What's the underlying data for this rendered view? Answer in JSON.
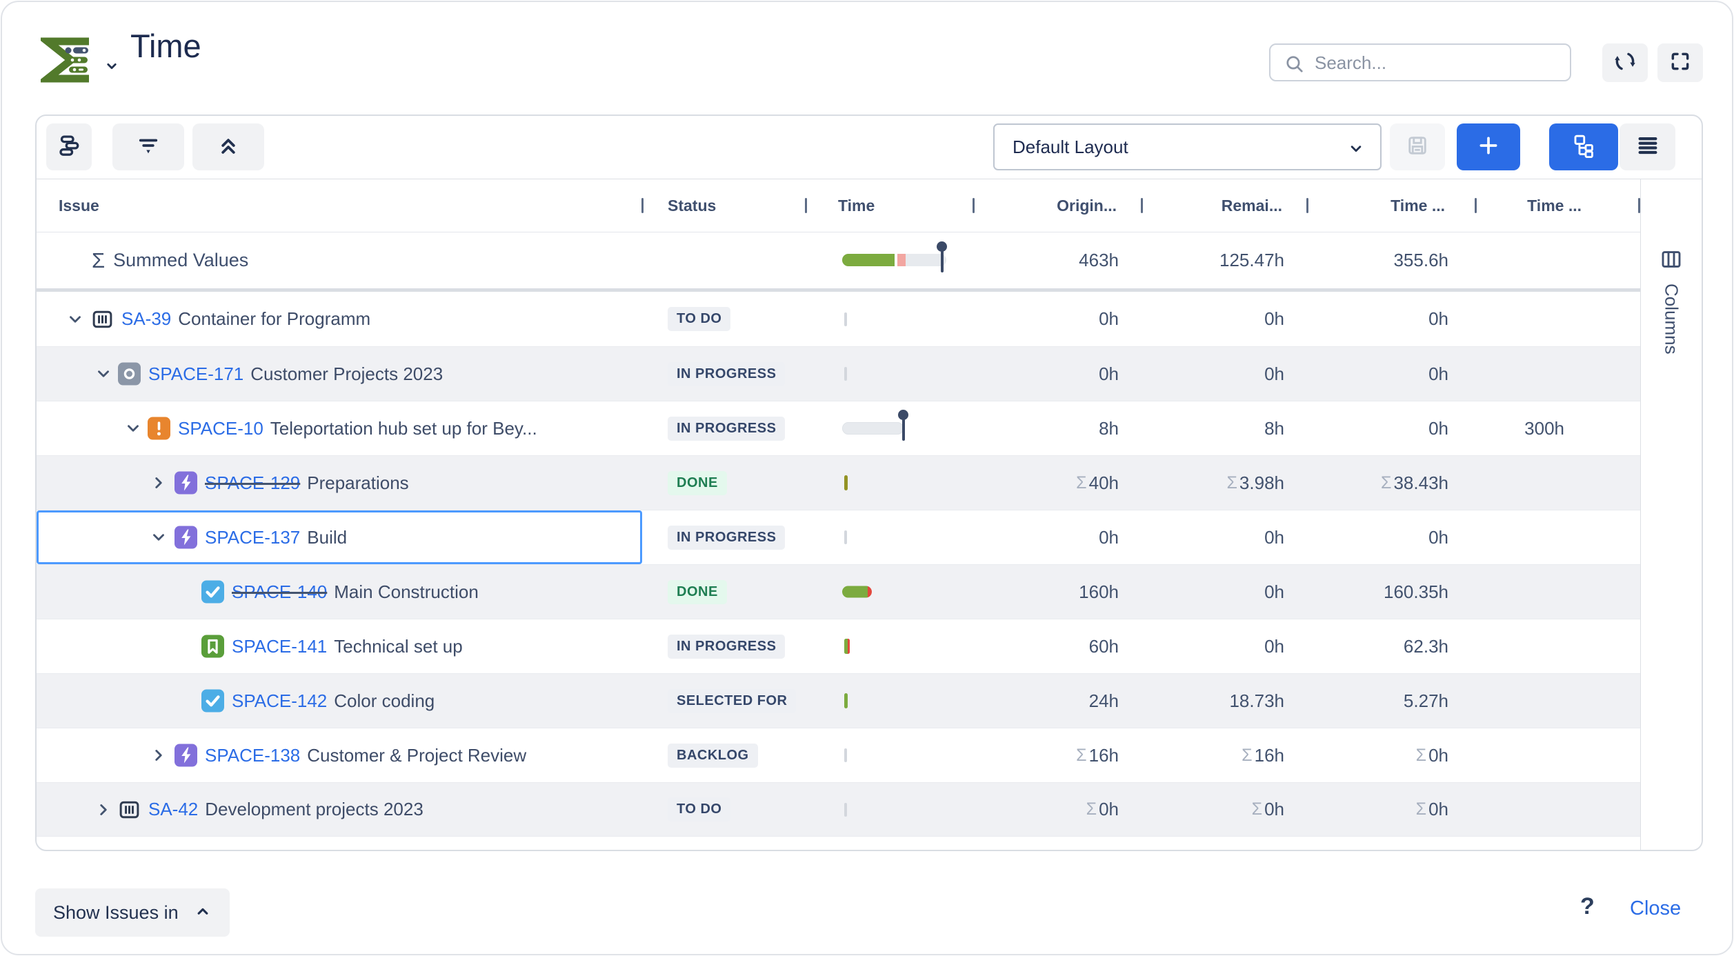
{
  "app": {
    "title": "Time"
  },
  "header": {
    "search_placeholder": "Search..."
  },
  "toolbar": {
    "layout_selector_value": "Default Layout"
  },
  "table": {
    "columns": [
      {
        "label": "Issue"
      },
      {
        "label": "Status"
      },
      {
        "label": "Time"
      },
      {
        "label": "Origin..."
      },
      {
        "label": "Remai..."
      },
      {
        "label": "Time ..."
      },
      {
        "label": "Time ..."
      }
    ],
    "summary_row": {
      "sigma": "Σ",
      "label": "Summed Values",
      "original": "463h",
      "remaining": "125.47h",
      "time_spent": "355.6h"
    },
    "rows": [
      {
        "key": "SA-39",
        "summary": "Container for Programm",
        "status": "TO DO",
        "status_style": "default",
        "icon": "container",
        "level": 1,
        "chevron": "down",
        "strikethrough": false,
        "selected": false,
        "zebra": "white",
        "time_indicator": "gray-tick",
        "original": {
          "sum": false,
          "text": "0h"
        },
        "remaining": {
          "sum": false,
          "text": "0h"
        },
        "time_spent": {
          "sum": false,
          "text": "0h"
        },
        "time4": null
      },
      {
        "key": "SPACE-171",
        "summary": "Customer Projects 2023",
        "status": "IN PROGRESS",
        "status_style": "default",
        "icon": "subprogram",
        "level": 2,
        "chevron": "down",
        "strikethrough": false,
        "selected": false,
        "zebra": "gray",
        "time_indicator": "gray-tick",
        "original": {
          "sum": false,
          "text": "0h"
        },
        "remaining": {
          "sum": false,
          "text": "0h"
        },
        "time_spent": {
          "sum": false,
          "text": "0h"
        },
        "time4": null
      },
      {
        "key": "SPACE-10",
        "summary": "Teleportation hub set up for Bey...",
        "status": "IN PROGRESS",
        "status_style": "default",
        "icon": "alert",
        "level": 3,
        "chevron": "down",
        "strikethrough": false,
        "selected": false,
        "zebra": "white",
        "time_indicator": "progress-pin",
        "original": {
          "sum": false,
          "text": "8h"
        },
        "remaining": {
          "sum": false,
          "text": "8h"
        },
        "time_spent": {
          "sum": false,
          "text": "0h"
        },
        "time4": {
          "sum": false,
          "text": "300h"
        }
      },
      {
        "key": "SPACE-129",
        "summary": "Preparations",
        "status": "DONE",
        "status_style": "done",
        "icon": "epic",
        "level": 4,
        "chevron": "right",
        "strikethrough": true,
        "selected": false,
        "zebra": "gray",
        "time_indicator": "olive-tick",
        "original": {
          "sum": true,
          "text": "40h"
        },
        "remaining": {
          "sum": true,
          "text": "3.98h"
        },
        "time_spent": {
          "sum": true,
          "text": "38.43h"
        },
        "time4": null
      },
      {
        "key": "SPACE-137",
        "summary": "Build",
        "status": "IN PROGRESS",
        "status_style": "default",
        "icon": "epic",
        "level": 4,
        "chevron": "down",
        "strikethrough": false,
        "selected": true,
        "zebra": "white",
        "time_indicator": "gray-tick",
        "original": {
          "sum": false,
          "text": "0h"
        },
        "remaining": {
          "sum": false,
          "text": "0h"
        },
        "time_spent": {
          "sum": false,
          "text": "0h"
        },
        "time4": null
      },
      {
        "key": "SPACE-140",
        "summary": "Main Construction",
        "status": "DONE",
        "status_style": "done",
        "icon": "task",
        "level": 5,
        "chevron": "none",
        "strikethrough": true,
        "selected": false,
        "zebra": "gray",
        "time_indicator": "green-pill",
        "original": {
          "sum": false,
          "text": "160h"
        },
        "remaining": {
          "sum": false,
          "text": "0h"
        },
        "time_spent": {
          "sum": false,
          "text": "160.35h"
        },
        "time4": null
      },
      {
        "key": "SPACE-141",
        "summary": "Technical set up",
        "status": "IN PROGRESS",
        "status_style": "default",
        "icon": "story",
        "level": 5,
        "chevron": "none",
        "strikethrough": false,
        "selected": false,
        "zebra": "white",
        "time_indicator": "green-red-tick",
        "original": {
          "sum": false,
          "text": "60h"
        },
        "remaining": {
          "sum": false,
          "text": "0h"
        },
        "time_spent": {
          "sum": false,
          "text": "62.3h"
        },
        "time4": null
      },
      {
        "key": "SPACE-142",
        "summary": "Color coding",
        "status": "SELECTED FOR",
        "status_style": "default",
        "icon": "task",
        "level": 5,
        "chevron": "none",
        "strikethrough": false,
        "selected": false,
        "zebra": "gray",
        "time_indicator": "green-tick",
        "original": {
          "sum": false,
          "text": "24h"
        },
        "remaining": {
          "sum": false,
          "text": "18.73h"
        },
        "time_spent": {
          "sum": false,
          "text": "5.27h"
        },
        "time4": null
      },
      {
        "key": "SPACE-138",
        "summary": "Customer & Project Review",
        "status": "BACKLOG",
        "status_style": "default",
        "icon": "epic",
        "level": 4,
        "chevron": "right",
        "strikethrough": false,
        "selected": false,
        "zebra": "white",
        "time_indicator": "gray-tick",
        "original": {
          "sum": true,
          "text": "16h"
        },
        "remaining": {
          "sum": true,
          "text": "16h"
        },
        "time_spent": {
          "sum": true,
          "text": "0h"
        },
        "time4": null
      },
      {
        "key": "SA-42",
        "summary": "Development projects 2023",
        "status": "TO DO",
        "status_style": "default",
        "icon": "container",
        "level": 2,
        "chevron": "right",
        "strikethrough": false,
        "selected": false,
        "zebra": "gray",
        "time_indicator": "gray-tick",
        "original": {
          "sum": true,
          "text": "0h"
        },
        "remaining": {
          "sum": true,
          "text": "0h"
        },
        "time_spent": {
          "sum": true,
          "text": "0h"
        },
        "time4": null
      }
    ]
  },
  "side_panel": {
    "label": "Columns"
  },
  "footer": {
    "show_issues_button": "Show Issues in",
    "help": "?",
    "close": "Close"
  },
  "colors": {
    "accent_blue": "#2b6ce6",
    "selection_blue": "#4c9aff",
    "progress_green": "#7cab3f",
    "overrun_red": "#e2483d",
    "done_text": "#1e7e52",
    "done_bg": "#e4f8ed",
    "badge_bg": "#eef0f4",
    "badge_text": "#35476a",
    "epic_purple": "#8270db",
    "task_blue": "#4cade6",
    "story_green": "#5a9e3a",
    "alert_orange": "#e8852e",
    "subprogram_gray": "#8b96a7",
    "logo_green": "#527a2b",
    "navy": "#22314f"
  }
}
